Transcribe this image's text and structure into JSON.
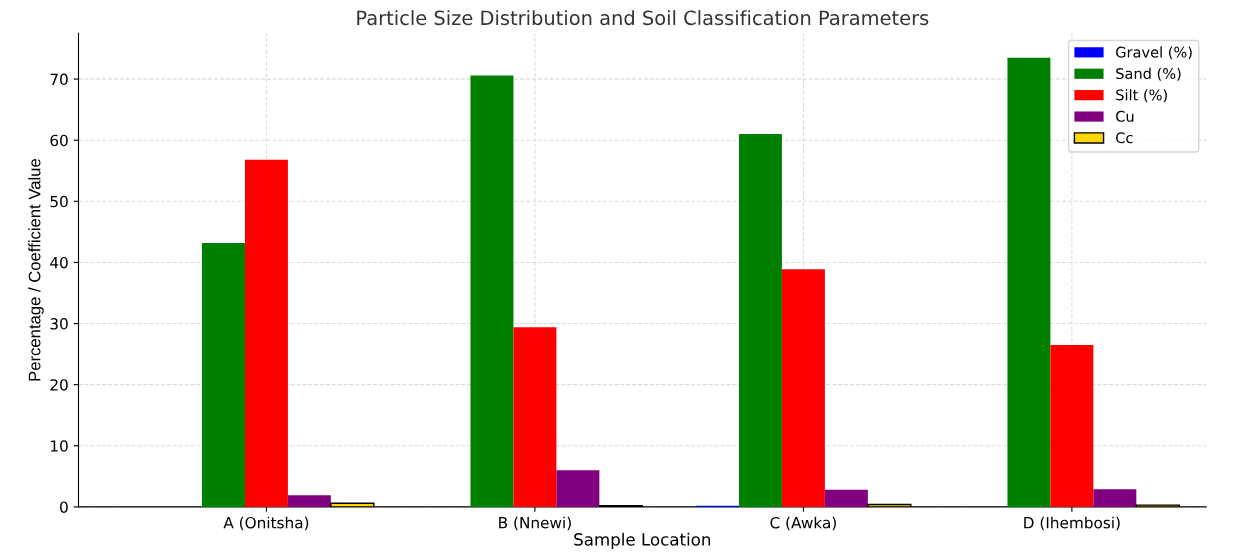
{
  "chart_data": {
    "type": "bar",
    "title": "Particle Size Distribution and Soil Classification Parameters",
    "xlabel": "Sample Location",
    "ylabel": "Percentage / Coefficient Value",
    "categories": [
      "A (Onitsha)",
      "B (Nnewi)",
      "C (Awka)",
      "D (Ihembosi)"
    ],
    "series": [
      {
        "name": "Gravel (%)",
        "color": "#0000ff",
        "values": [
          0,
          0,
          0.2,
          0
        ]
      },
      {
        "name": "Sand (%)",
        "color": "#008000",
        "values": [
          43.2,
          70.6,
          61.0,
          73.5
        ]
      },
      {
        "name": "Silt (%)",
        "color": "#ff0000",
        "values": [
          56.8,
          29.4,
          38.9,
          26.5
        ]
      },
      {
        "name": "Cu",
        "color": "#800080",
        "values": [
          1.9,
          6.0,
          2.8,
          2.9
        ]
      },
      {
        "name": "Cc",
        "color": "#ffd700",
        "values": [
          0.6,
          0.2,
          0.4,
          0.3
        ]
      }
    ],
    "ylim": [
      0,
      77.5
    ],
    "yticks": [
      0,
      10,
      20,
      30,
      40,
      50,
      60,
      70
    ],
    "grid": true,
    "legend": "top right"
  }
}
